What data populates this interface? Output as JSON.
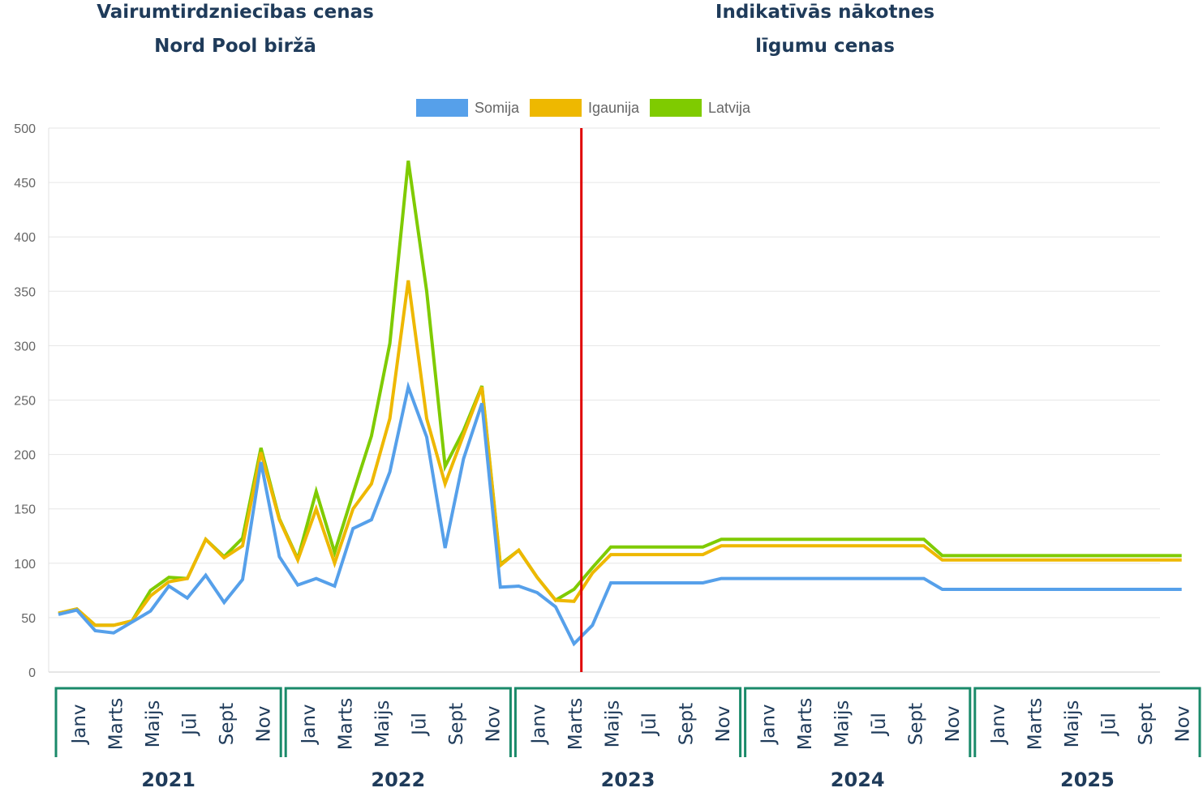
{
  "headings": {
    "left_line1": "Vairumtirdzniecības cenas",
    "left_line2": "Nord Pool biržā",
    "right_line1": "Indikatīvās nākotnes",
    "right_line2": "līgumu cenas"
  },
  "colors": {
    "somija": "#56a0ea",
    "igaunija": "#eeb800",
    "latvija": "#7fcb00",
    "divider": "#e00000",
    "bracket": "#1a8a6a",
    "text": "#1f3b5a"
  },
  "chart_data": {
    "type": "line",
    "title": "",
    "xlabel": "",
    "ylabel": "",
    "ylim": [
      0,
      500
    ],
    "yticks": [
      0,
      50,
      100,
      150,
      200,
      250,
      300,
      350,
      400,
      450,
      500
    ],
    "grid": true,
    "legend_position": "top-center",
    "divider_after_index": 28,
    "years": [
      "2021",
      "2022",
      "2023",
      "2024",
      "2025"
    ],
    "month_labels": [
      "Janv",
      "Marts",
      "Maijs",
      "Jūl",
      "Sept",
      "Nov"
    ],
    "series": [
      {
        "name": "Somija",
        "color": "#56a0ea",
        "values": [
          53,
          57,
          38,
          36,
          46,
          56,
          79,
          68,
          89,
          64,
          85,
          193,
          106,
          80,
          86,
          79,
          132,
          140,
          184,
          262,
          216,
          114,
          196,
          247,
          78,
          79,
          73,
          60,
          26,
          43,
          82,
          82,
          82,
          82,
          82,
          82,
          86,
          86,
          86,
          86,
          86,
          86,
          86,
          86,
          86,
          86,
          86,
          86,
          76,
          76,
          76,
          76,
          76,
          76,
          76,
          76,
          76,
          76,
          76,
          76,
          76,
          76
        ]
      },
      {
        "name": "Igaunija",
        "color": "#eeb800",
        "values": [
          54,
          58,
          43,
          43,
          47,
          70,
          83,
          86,
          122,
          105,
          116,
          202,
          140,
          103,
          150,
          100,
          150,
          173,
          233,
          360,
          233,
          173,
          218,
          262,
          98,
          112,
          87,
          66,
          65,
          91,
          108,
          108,
          108,
          108,
          108,
          108,
          116,
          116,
          116,
          116,
          116,
          116,
          116,
          116,
          116,
          116,
          116,
          116,
          103,
          103,
          103,
          103,
          103,
          103,
          103,
          103,
          103,
          103,
          103,
          103,
          103,
          103
        ]
      },
      {
        "name": "Latvija",
        "color": "#7fcb00",
        "values": [
          54,
          58,
          43,
          43,
          47,
          75,
          87,
          86,
          122,
          106,
          123,
          206,
          141,
          104,
          166,
          110,
          164,
          217,
          302,
          470,
          350,
          189,
          222,
          263,
          99,
          112,
          87,
          66,
          76,
          96,
          115,
          115,
          115,
          115,
          115,
          115,
          122,
          122,
          122,
          122,
          122,
          122,
          122,
          122,
          122,
          122,
          122,
          122,
          107,
          107,
          107,
          107,
          107,
          107,
          107,
          107,
          107,
          107,
          107,
          107,
          107,
          107
        ]
      }
    ]
  }
}
